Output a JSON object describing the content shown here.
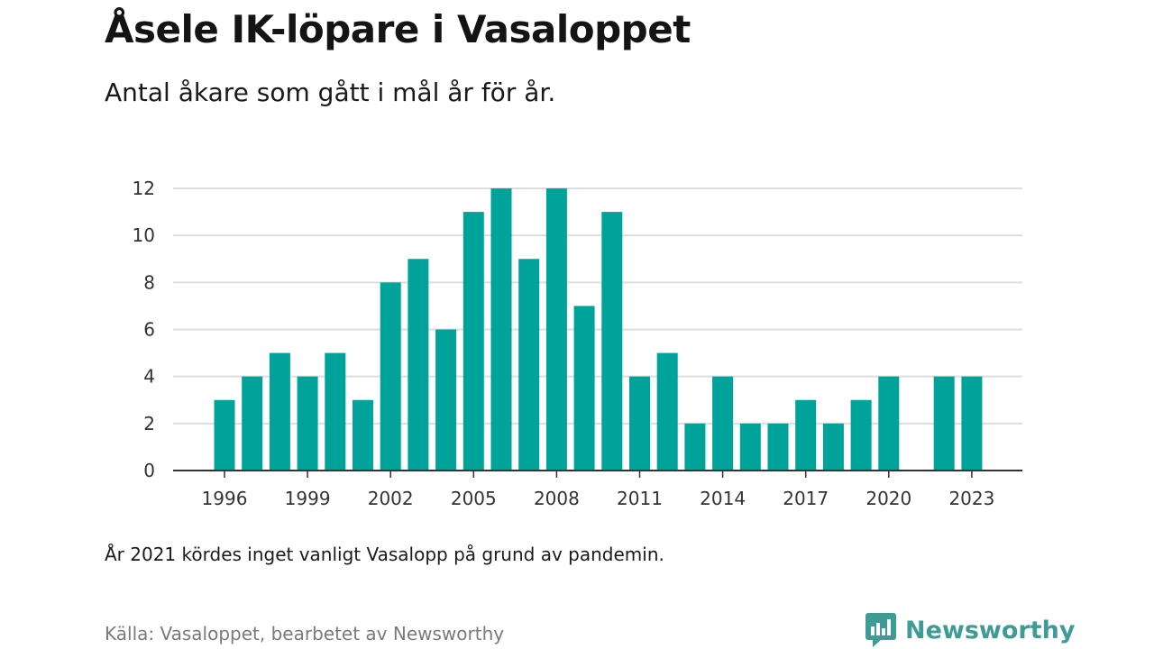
{
  "header": {
    "title": "Åsele IK-löpare i Vasaloppet",
    "subtitle": "Antal åkare som gått i mål år för år."
  },
  "footer": {
    "note": "År 2021 kördes inget vanligt Vasalopp på grund av pandemin.",
    "source": "Källa: Vasaloppet, bearbetet av Newsworthy",
    "brand_name": "Newsworthy",
    "brand_icon": "newsworthy-logo-icon"
  },
  "colors": {
    "bar": "#00a39a",
    "gridline": "#dddddd",
    "axis": "#333333",
    "brand": "#3f9b95"
  },
  "chart_data": {
    "type": "bar",
    "title": "Åsele IK-löpare i Vasaloppet",
    "subtitle": "Antal åkare som gått i mål år för år.",
    "xlabel": "",
    "ylabel": "",
    "categories": [
      1996,
      1997,
      1998,
      1999,
      2000,
      2001,
      2002,
      2003,
      2004,
      2005,
      2006,
      2007,
      2008,
      2009,
      2010,
      2011,
      2012,
      2013,
      2014,
      2015,
      2016,
      2017,
      2018,
      2019,
      2020,
      2021,
      2022,
      2023
    ],
    "values": [
      3,
      4,
      5,
      4,
      5,
      3,
      8,
      9,
      6,
      11,
      12,
      9,
      12,
      7,
      11,
      4,
      5,
      2,
      4,
      2,
      2,
      3,
      2,
      3,
      4,
      null,
      4,
      4
    ],
    "ylim": [
      0,
      12
    ],
    "yticks": [
      0,
      2,
      4,
      6,
      8,
      10,
      12
    ],
    "xticks": [
      1996,
      1999,
      2002,
      2005,
      2008,
      2011,
      2014,
      2017,
      2020,
      2023
    ],
    "grid": true,
    "legend": "none"
  }
}
